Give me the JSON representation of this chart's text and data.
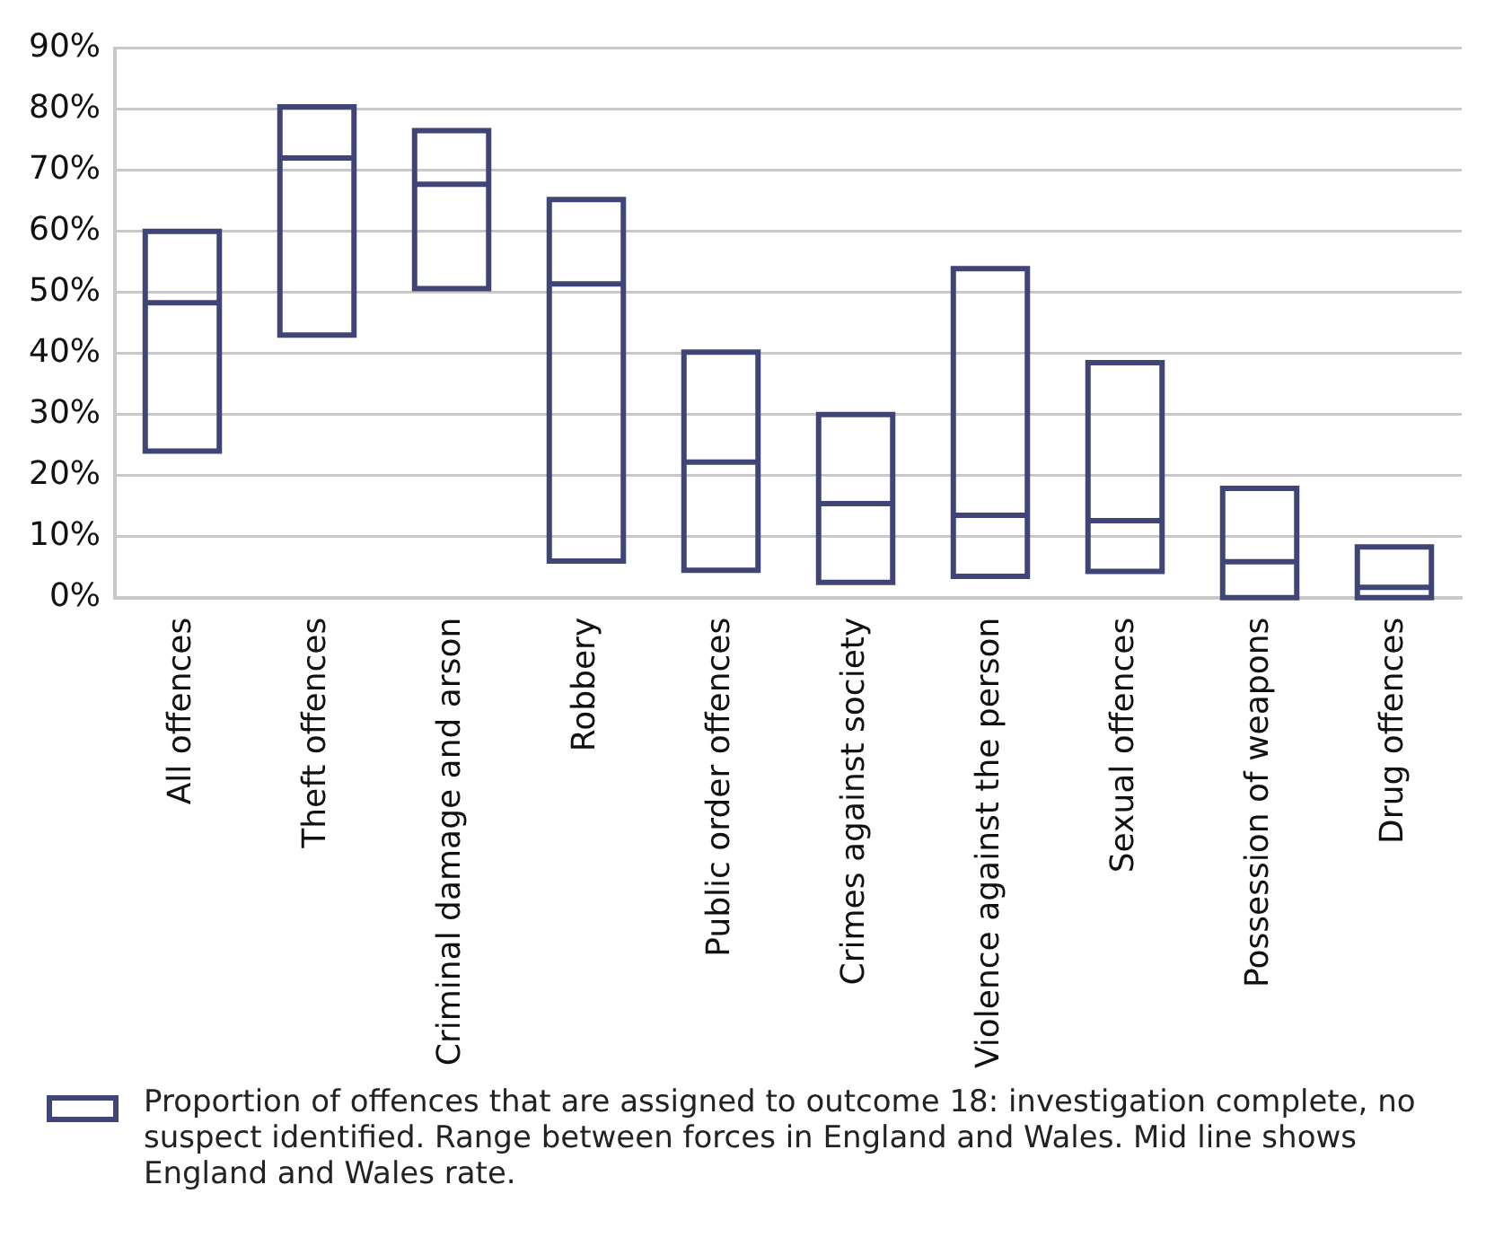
{
  "chart_data": {
    "type": "box",
    "categories": [
      "All offences",
      "Theft offences",
      "Criminal damage and arson",
      "Robbery",
      "Public order offences",
      "Crimes against society",
      "Violence against the person",
      "Sexual offences",
      "Possession of weapons",
      "Drug offences"
    ],
    "series": [
      {
        "name": "Proportion of offences that are assigned to outcome 18: investigation complete, no suspect identified. Range between forces in England and Wales. Mid line shows England and Wales rate.",
        "color": "#3f4577",
        "boxes": [
          {
            "low": 24,
            "q1": 24,
            "median": 48.3,
            "q3": 60,
            "high": 60
          },
          {
            "low": 43,
            "q1": 43,
            "median": 72,
            "q3": 80.4,
            "high": 80.4
          },
          {
            "low": 50.6,
            "q1": 50.6,
            "median": 67.7,
            "q3": 76.5,
            "high": 76.5
          },
          {
            "low": 6,
            "q1": 6,
            "median": 51.4,
            "q3": 65.2,
            "high": 65.2
          },
          {
            "low": 4.5,
            "q1": 4.5,
            "median": 22.2,
            "q3": 40.2,
            "high": 40.2
          },
          {
            "low": 2.5,
            "q1": 2.5,
            "median": 15.4,
            "q3": 30,
            "high": 30
          },
          {
            "low": 3.5,
            "q1": 3.5,
            "median": 13.5,
            "q3": 53.9,
            "high": 53.9
          },
          {
            "low": 4.3,
            "q1": 4.3,
            "median": 12.6,
            "q3": 38.5,
            "high": 38.5
          },
          {
            "low": 0,
            "q1": 0,
            "median": 5.9,
            "q3": 17.9,
            "high": 17.9
          },
          {
            "low": 0,
            "q1": 0,
            "median": 1.7,
            "q3": 8.3,
            "high": 8.3
          }
        ]
      }
    ],
    "ylim": [
      0,
      90
    ],
    "yticks": [
      {
        "value": 0,
        "label": "0%"
      },
      {
        "value": 10,
        "label": "10%"
      },
      {
        "value": 20,
        "label": "20%"
      },
      {
        "value": 30,
        "label": "30%"
      },
      {
        "value": 40,
        "label": "40%"
      },
      {
        "value": 50,
        "label": "50%"
      },
      {
        "value": 60,
        "label": "60%"
      },
      {
        "value": 70,
        "label": "70%"
      },
      {
        "value": 80,
        "label": "80%"
      },
      {
        "value": 90,
        "label": "90%"
      }
    ],
    "grid": "y",
    "legend": "bottom"
  }
}
